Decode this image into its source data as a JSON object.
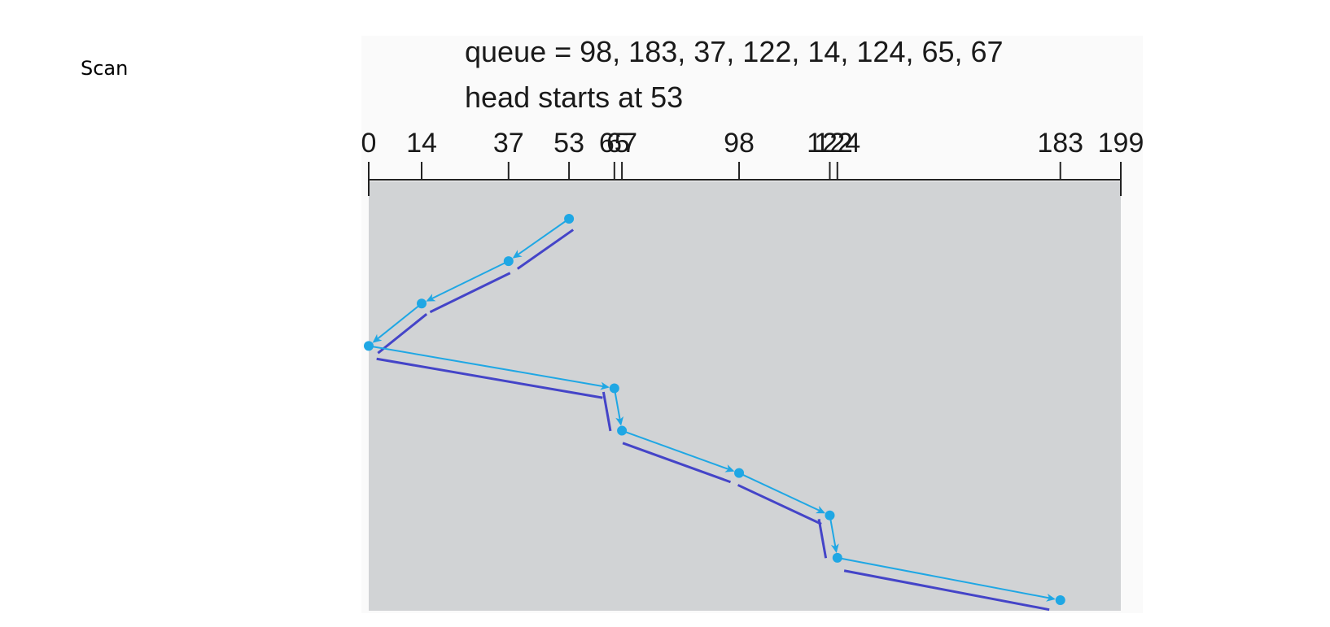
{
  "slide": {
    "title": "Scan"
  },
  "caption": {
    "queue_text": "queue = 98, 183, 37, 122, 14, 124, 65, 67",
    "head_text": "head starts at 53"
  },
  "axis": {
    "min": 0,
    "max": 199,
    "ticks": [
      0,
      14,
      37,
      53,
      65,
      67,
      98,
      122,
      124,
      183,
      199
    ],
    "tick_labels": [
      "0",
      "14",
      "37",
      "53",
      "65",
      "67",
      "98",
      "122",
      "124",
      "183",
      "199"
    ]
  },
  "head_path": {
    "sequence": [
      53,
      37,
      14,
      0,
      65,
      67,
      98,
      122,
      124,
      183
    ]
  },
  "colors": {
    "plot_bg": "#d1d3d5",
    "path_light": "#1fa7e4",
    "path_dark": "#4444c8",
    "axis": "#222222"
  }
}
